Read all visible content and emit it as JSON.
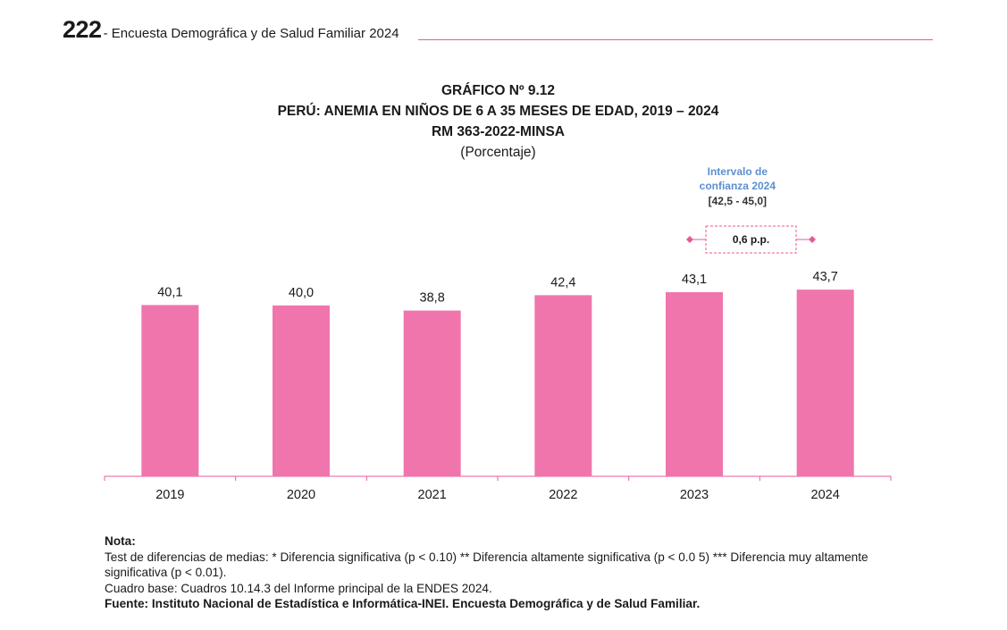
{
  "header": {
    "page_number": "222",
    "running_title": "- Encuesta Demográfica y de Salud Familiar 2024"
  },
  "titles": {
    "chart_number": "GRÁFICO Nº 9.12",
    "title": "PERÚ: ANEMIA EN NIÑOS DE 6 A 35 MESES DE EDAD, 2019 – 2024",
    "subtitle": "RM 363-2022-MINSA",
    "unit": "(Porcentaje)"
  },
  "chart_data": {
    "type": "bar",
    "categories": [
      "2019",
      "2020",
      "2021",
      "2022",
      "2023",
      "2024"
    ],
    "values": [
      40.1,
      40.0,
      38.8,
      42.4,
      43.1,
      43.7
    ],
    "value_labels": [
      "40,1",
      "40,0",
      "38,8",
      "42,4",
      "43,1",
      "43,7"
    ],
    "ylim": [
      0,
      50
    ],
    "grid": false,
    "bar_color": "#f075ad",
    "axis_color": "#e8589a",
    "annotation": {
      "label_line1": "Intervalo de",
      "label_line2": "confianza 2024",
      "interval": "[42,5 - 45,0]",
      "difference": "0,6  p.p.",
      "label_color": "#5b8fd1",
      "marker_color": "#e8589a"
    }
  },
  "notes": {
    "heading": "Nota:",
    "line1": "Test de diferencias de medias: * Diferencia significativa (p < 0.10)  ** Diferencia altamente significativa (p < 0.0 5)   *** Diferencia muy altamente",
    "line2": "significativa (p < 0.01).",
    "line3": "Cuadro base: Cuadros 10.14.3 del Informe principal de la ENDES 2024.",
    "source": "Fuente: Instituto Nacional de Estadística e Informática-INEI. Encuesta Demográfica y de Salud Familiar."
  }
}
